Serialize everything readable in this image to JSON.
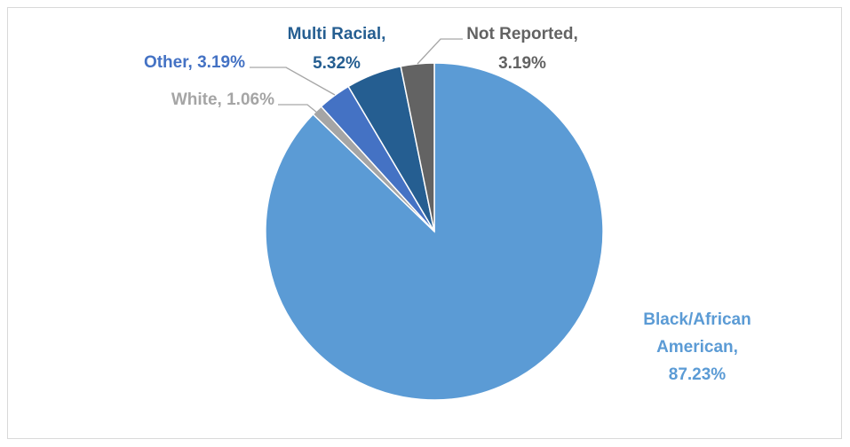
{
  "chart_data": {
    "type": "pie",
    "title": "",
    "start_angle_deg": 0,
    "direction": "clockwise",
    "slices": [
      {
        "label": "Black/African American",
        "value": 87.23,
        "value_text": "87.23%",
        "color": "#5b9bd5",
        "label_lines": [
          "Black/African",
          "American,",
          "87.23%"
        ]
      },
      {
        "label": "White",
        "value": 1.06,
        "value_text": "1.06%",
        "color": "#a5a5a5",
        "label_lines": [
          "White, 1.06%"
        ]
      },
      {
        "label": "Other",
        "value": 3.19,
        "value_text": "3.19%",
        "color": "#4472c4",
        "label_lines": [
          "Other, 3.19%"
        ]
      },
      {
        "label": "Multi Racial",
        "value": 5.32,
        "value_text": "5.32%",
        "color": "#255e91",
        "label_lines": [
          "Multi Racial,",
          "5.32%"
        ]
      },
      {
        "label": "Not Reported",
        "value": 3.19,
        "value_text": "3.19%",
        "color": "#636363",
        "label_lines": [
          "Not Reported,",
          "3.19%"
        ]
      }
    ],
    "leader_line_color": "#a6a6a6",
    "slice_border_color": "#ffffff"
  }
}
